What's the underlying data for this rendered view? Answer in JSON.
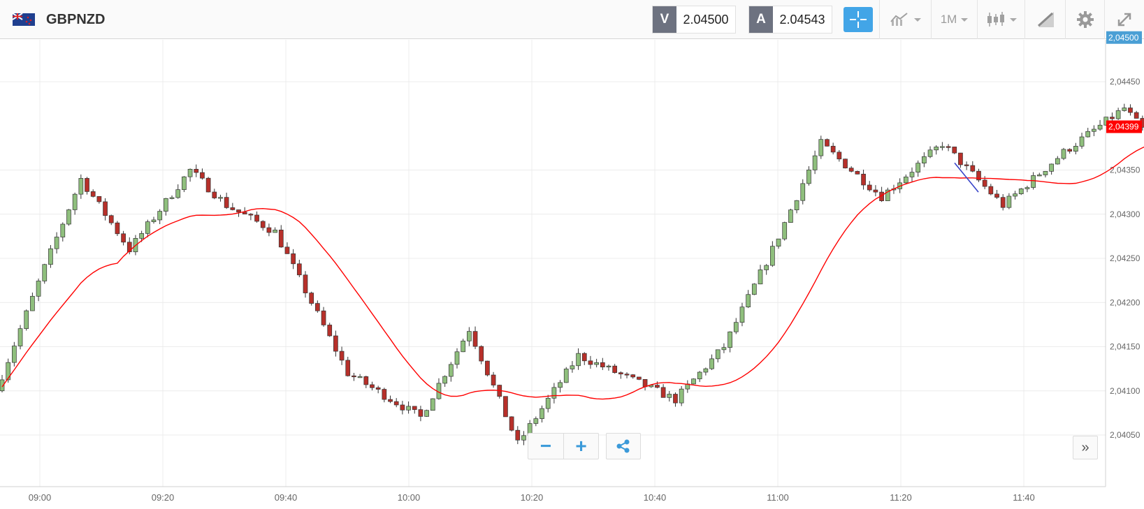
{
  "header": {
    "symbol": "GBPNZD",
    "sell": {
      "label": "V",
      "value": "2.04500"
    },
    "buy": {
      "label": "A",
      "value": "2.04543"
    },
    "timeframe": "1M",
    "icons": [
      "flag-icon",
      "crosshair-icon",
      "indicators-icon",
      "chart-type-icon",
      "drawing-icon",
      "gear-icon",
      "fullscreen-icon"
    ]
  },
  "chart_data": {
    "type": "candlestick",
    "x_ticks": [
      "09:00",
      "09:20",
      "09:40",
      "10:00",
      "10:20",
      "10:40",
      "11:00",
      "11:20",
      "11:40"
    ],
    "y_ticks": [
      "2,04050",
      "2,04100",
      "2,04150",
      "2,04200",
      "2,04250",
      "2,04300",
      "2,04350",
      "2,04450"
    ],
    "ylim": [
      2.0401,
      2.0451
    ],
    "last_price_label": "2,04500",
    "ma_price_label": "2,04399",
    "colors": {
      "up": "#8fbf7d",
      "down": "#b7302a",
      "ma": "#ff0000",
      "last": "#4a9fd5",
      "trend": "#3844c8"
    }
  },
  "controls": {
    "zoom_out": "−",
    "zoom_in": "+",
    "goto_latest": "»"
  }
}
